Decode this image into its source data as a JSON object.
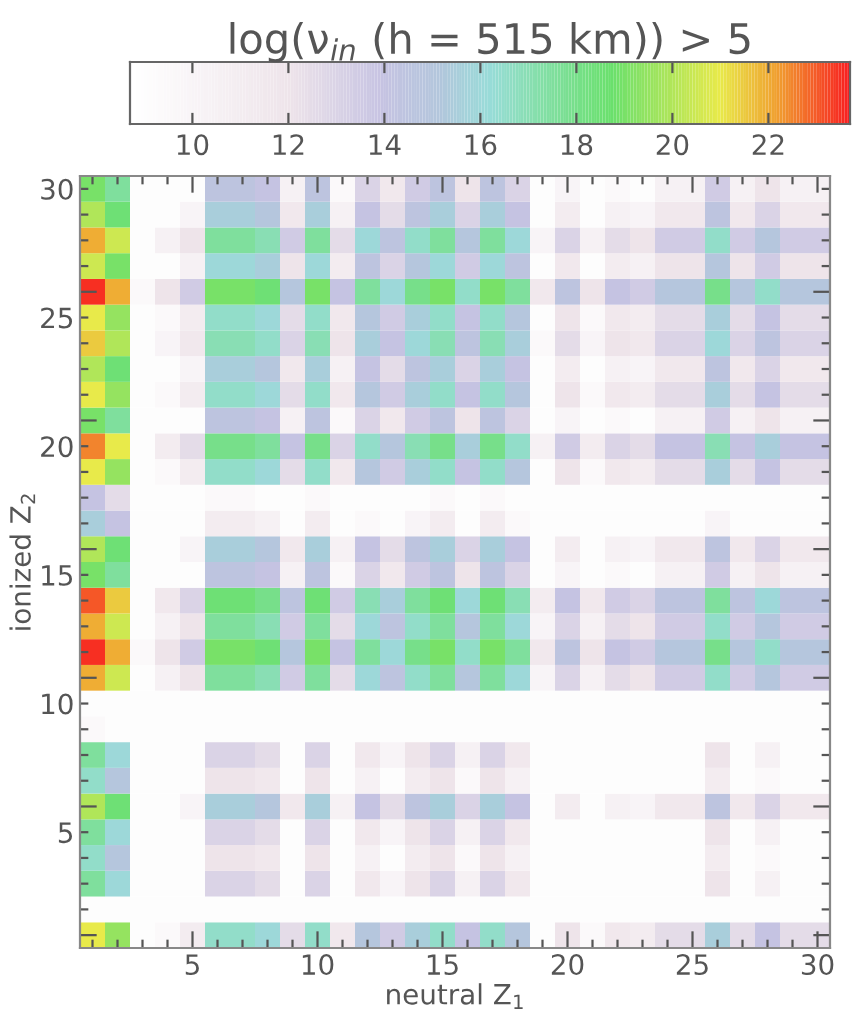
{
  "chart_data": {
    "type": "heatmap",
    "clabel": "log(ν$_{in}$ (h = 515 km)) > 5",
    "xlabel": "neutral Z$_{1}$",
    "ylabel": "ionized Z$_{2}$",
    "categories": [
      null,
      null,
      null,
      null,
      "5",
      null,
      null,
      null,
      null,
      "10",
      null,
      null,
      null,
      null,
      "15",
      null,
      null,
      null,
      null,
      "20",
      null,
      null,
      null,
      null,
      "25",
      null,
      null,
      null,
      null,
      "30"
    ],
    "y_categories": [
      "30",
      null,
      null,
      null,
      null,
      "25",
      null,
      null,
      null,
      null,
      "20",
      null,
      null,
      null,
      null,
      "15",
      null,
      null,
      null,
      null,
      "10",
      null,
      null,
      null,
      null,
      "5",
      null,
      null,
      null,
      null
    ],
    "clim": [
      8.7,
      23.7
    ],
    "cticks": [
      10,
      12,
      14,
      16,
      18,
      20,
      22
    ],
    "cells": [
      [
        19,
        17.5,
        9,
        9,
        9,
        14.5,
        14.5,
        14,
        10.5,
        14.5,
        9.5,
        13,
        11.5,
        13.5,
        14.5,
        12,
        14.5,
        13,
        9,
        10,
        9,
        9.5,
        9,
        10.5,
        10.5,
        13.5,
        10.5,
        12,
        10.5,
        10.5
      ],
      [
        20,
        18.5,
        9,
        9,
        10,
        15.5,
        15.5,
        15,
        11.5,
        15.5,
        10.5,
        14,
        12.5,
        14.5,
        15.5,
        13,
        15.5,
        14,
        9,
        11,
        9,
        10.5,
        10,
        11.5,
        11.5,
        14.5,
        11.5,
        13,
        11.5,
        11.5
      ],
      [
        22,
        20.5,
        9,
        10.5,
        12,
        17.5,
        17.5,
        17,
        13.5,
        17.5,
        12.5,
        16,
        14.5,
        16.5,
        17.5,
        15,
        17.5,
        16,
        10,
        13,
        10.5,
        12.5,
        12,
        13.5,
        13.5,
        16.5,
        13.5,
        15,
        13.5,
        13.5
      ],
      [
        20.5,
        19,
        9,
        9,
        10.5,
        16,
        16,
        15.5,
        12,
        16,
        11,
        14.5,
        13,
        15,
        16,
        13.5,
        16,
        14.5,
        9,
        11.5,
        9,
        11,
        10.5,
        12,
        12,
        15,
        12,
        13.5,
        12,
        12
      ],
      [
        23.5,
        22,
        9.5,
        12,
        13.5,
        19,
        19,
        18.5,
        15,
        19,
        14,
        17.5,
        16,
        18,
        19,
        16.5,
        19,
        17.5,
        11.5,
        14.5,
        12,
        14,
        13.5,
        15,
        15,
        18,
        15,
        16.5,
        15,
        15
      ],
      [
        21,
        19.5,
        9,
        9.5,
        11,
        16.5,
        16.5,
        16,
        12.5,
        16.5,
        11.5,
        15,
        13.5,
        15.5,
        16.5,
        14,
        16.5,
        15,
        9,
        12,
        9.5,
        11.5,
        11,
        12.5,
        12.5,
        15.5,
        12.5,
        14,
        12.5,
        12.5
      ],
      [
        21.5,
        20,
        9,
        10,
        11.5,
        17,
        17,
        16.5,
        13,
        17,
        12,
        15.5,
        14,
        16,
        17,
        14.5,
        17,
        15.5,
        9.5,
        12.5,
        10,
        12,
        11.5,
        13,
        13,
        16,
        13,
        14.5,
        13,
        13
      ],
      [
        20,
        18.5,
        9,
        9,
        10,
        15.5,
        15.5,
        15,
        11.5,
        15.5,
        10.5,
        14,
        12.5,
        14.5,
        15.5,
        13,
        15.5,
        14,
        9,
        11,
        9,
        10.5,
        10,
        11.5,
        11.5,
        14.5,
        11.5,
        13,
        11.5,
        11.5
      ],
      [
        21,
        19.5,
        9,
        9.5,
        11,
        16.5,
        16.5,
        16,
        12.5,
        16.5,
        11.5,
        15,
        13.5,
        15.5,
        16.5,
        14,
        16.5,
        15,
        9,
        12,
        9.5,
        11.5,
        11,
        12.5,
        12.5,
        15.5,
        12.5,
        14,
        12.5,
        12.5
      ],
      [
        19,
        17.5,
        9,
        9,
        9,
        14.5,
        14.5,
        14,
        10.5,
        14.5,
        9.5,
        13,
        11.5,
        13.5,
        14.5,
        12,
        14.5,
        13,
        9,
        10,
        9,
        9.5,
        9,
        10.5,
        10.5,
        13.5,
        10.5,
        12,
        10.5,
        10.5
      ],
      [
        22.5,
        21,
        9,
        11,
        12.5,
        18,
        18,
        17.5,
        14,
        18,
        13,
        16.5,
        15,
        17,
        18,
        15.5,
        18,
        16.5,
        10.5,
        13.5,
        11,
        13,
        12.5,
        14,
        14,
        17,
        14,
        15.5,
        14,
        14
      ],
      [
        21,
        19.5,
        9,
        9.5,
        11,
        16.5,
        16.5,
        16,
        12.5,
        16.5,
        11.5,
        15,
        13.5,
        15.5,
        16.5,
        14,
        16.5,
        15,
        9,
        12,
        9.5,
        11.5,
        11,
        12.5,
        12.5,
        15.5,
        12.5,
        14,
        12.5,
        12.5
      ],
      [
        14,
        12.5,
        9,
        9,
        9,
        9.5,
        9.5,
        9,
        9,
        9.5,
        9,
        9,
        9,
        9,
        9.5,
        9,
        9.5,
        9,
        9,
        9,
        9,
        9,
        9,
        9,
        9,
        9,
        9,
        9,
        9,
        9
      ],
      [
        15.5,
        14,
        9,
        9,
        9,
        11,
        11,
        10.5,
        9,
        11,
        9,
        9.5,
        9,
        10,
        11,
        9,
        11,
        9.5,
        9,
        9,
        9,
        9,
        9,
        9,
        9,
        10,
        9,
        9,
        9,
        9
      ],
      [
        20,
        18.5,
        9,
        9,
        10,
        15.5,
        15.5,
        15,
        11.5,
        15.5,
        10.5,
        14,
        12.5,
        14.5,
        15.5,
        13,
        15.5,
        14,
        9,
        11,
        9,
        10.5,
        10,
        11.5,
        11.5,
        14.5,
        11.5,
        13,
        11.5,
        11.5
      ],
      [
        19,
        17.5,
        9,
        9,
        9,
        14.5,
        14.5,
        14,
        10.5,
        14.5,
        9.5,
        13,
        11.5,
        13.5,
        14.5,
        12,
        14.5,
        13,
        9,
        10,
        9,
        9.5,
        9,
        10.5,
        10.5,
        13.5,
        10.5,
        12,
        10.5,
        10.5
      ],
      [
        23,
        21.5,
        9,
        11.5,
        13,
        18.5,
        18.5,
        18,
        14.5,
        18.5,
        13.5,
        17,
        15.5,
        17.5,
        18.5,
        16,
        18.5,
        17,
        11,
        14,
        11.5,
        13.5,
        13,
        14.5,
        14.5,
        17.5,
        14.5,
        16,
        14.5,
        14.5
      ],
      [
        22,
        20.5,
        9,
        10.5,
        12,
        17.5,
        17.5,
        17,
        13.5,
        17.5,
        12.5,
        16,
        14.5,
        16.5,
        17.5,
        15,
        17.5,
        16,
        10,
        13,
        10.5,
        12.5,
        12,
        13.5,
        13.5,
        16.5,
        13.5,
        15,
        13.5,
        13.5
      ],
      [
        23.5,
        22,
        9.5,
        12,
        13.5,
        19,
        19,
        18.5,
        15,
        19,
        14,
        17.5,
        16,
        18,
        19,
        16.5,
        19,
        17.5,
        11.5,
        14.5,
        12,
        14,
        13.5,
        15,
        15,
        18,
        15,
        16.5,
        15,
        15
      ],
      [
        22,
        20.5,
        9,
        10.5,
        12,
        17.5,
        17.5,
        17,
        13.5,
        17.5,
        12.5,
        16,
        14.5,
        16.5,
        17.5,
        15,
        17.5,
        16,
        10,
        13,
        10.5,
        12.5,
        12,
        13.5,
        13.5,
        16.5,
        13.5,
        15,
        13.5,
        13.5
      ],
      [
        9,
        9,
        9,
        9,
        9,
        9,
        9,
        9,
        9,
        9,
        9,
        9,
        9,
        9,
        9,
        9,
        9,
        9,
        9,
        9,
        9,
        9,
        9,
        9,
        9,
        9,
        9,
        9,
        9,
        9
      ],
      [
        9.5,
        9,
        9,
        9,
        9,
        9,
        9,
        9,
        9,
        9,
        9,
        9,
        9,
        9,
        9,
        9,
        9,
        9,
        9,
        9,
        9,
        9,
        9,
        9,
        9,
        9,
        9,
        9,
        9,
        9
      ],
      [
        17.5,
        16,
        9,
        9,
        9,
        13,
        13,
        12.5,
        9,
        13,
        9,
        11.5,
        10,
        12,
        13,
        10.5,
        13,
        11.5,
        9,
        9,
        9,
        9,
        9,
        9,
        9,
        12,
        9,
        10.5,
        9,
        9
      ],
      [
        16.5,
        15,
        9,
        9,
        9,
        12,
        12,
        11.5,
        9,
        12,
        9,
        10.5,
        9,
        11,
        12,
        9.5,
        12,
        10.5,
        9,
        9,
        9,
        9,
        9,
        9,
        9,
        11,
        9,
        9.5,
        9,
        9
      ],
      [
        20,
        18.5,
        9,
        9,
        10,
        15.5,
        15.5,
        15,
        11.5,
        15.5,
        10.5,
        14,
        12.5,
        14.5,
        15.5,
        13,
        15.5,
        14,
        9,
        11,
        9,
        10.5,
        10,
        11.5,
        11.5,
        14.5,
        11.5,
        13,
        11.5,
        11.5
      ],
      [
        17.5,
        16,
        9,
        9,
        9,
        13,
        13,
        12.5,
        9,
        13,
        9,
        11.5,
        10,
        12,
        13,
        10.5,
        13,
        11.5,
        9,
        9,
        9,
        9,
        9,
        9,
        9,
        12,
        9,
        10.5,
        9,
        9
      ],
      [
        16.5,
        15,
        9,
        9,
        9,
        12,
        12,
        11.5,
        9,
        12,
        9,
        10.5,
        9,
        11,
        12,
        9.5,
        12,
        10.5,
        9,
        9,
        9,
        9,
        9,
        9,
        9,
        11,
        9,
        9.5,
        9,
        9
      ],
      [
        17.5,
        16,
        9,
        9,
        9,
        13,
        13,
        12.5,
        9,
        13,
        9,
        11.5,
        10,
        12,
        13,
        10.5,
        13,
        11.5,
        9,
        9,
        9,
        9,
        9,
        9,
        9,
        12,
        9,
        10.5,
        9,
        9
      ],
      [
        9,
        9,
        9,
        9,
        9,
        9,
        9,
        9,
        9,
        9,
        9,
        9,
        9,
        9,
        9,
        9,
        9,
        9,
        9,
        9,
        9,
        9,
        9,
        9,
        9,
        9,
        9,
        9,
        9,
        9
      ],
      [
        21,
        19.5,
        9,
        9.5,
        11,
        16.5,
        16.5,
        16,
        12.5,
        16.5,
        11.5,
        15,
        13.5,
        15.5,
        16.5,
        14,
        16.5,
        15,
        9,
        12,
        9.5,
        11.5,
        11,
        12.5,
        12.5,
        15.5,
        12.5,
        14,
        12.5,
        12.5
      ]
    ]
  }
}
